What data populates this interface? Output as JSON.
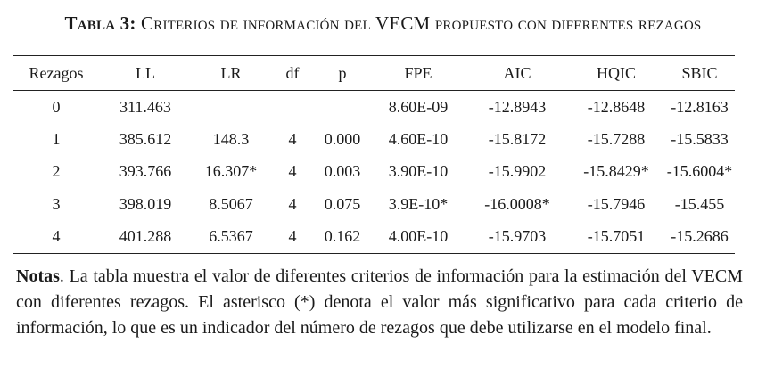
{
  "caption": {
    "label": "Tabla 3:",
    "title": "Criterios de información del VECM propuesto con diferentes rezagos"
  },
  "table": {
    "columns": [
      "Rezagos",
      "LL",
      "LR",
      "df",
      "p",
      "FPE",
      "AIC",
      "HQIC",
      "SBIC"
    ],
    "rows": [
      [
        "0",
        "311.463",
        "",
        "",
        "",
        "8.60E-09",
        "-12.8943",
        "-12.8648",
        "-12.8163"
      ],
      [
        "1",
        "385.612",
        "148.3",
        "4",
        "0.000",
        "4.60E-10",
        "-15.8172",
        "-15.7288",
        "-15.5833"
      ],
      [
        "2",
        "393.766",
        "16.307*",
        "4",
        "0.003",
        "3.90E-10",
        "-15.9902",
        "-15.8429*",
        "-15.6004*"
      ],
      [
        "3",
        "398.019",
        "8.5067",
        "4",
        "0.075",
        "3.9E-10*",
        "-16.0008*",
        "-15.7946",
        "-15.455"
      ],
      [
        "4",
        "401.288",
        "6.5367",
        "4",
        "0.162",
        "4.00E-10",
        "-15.9703",
        "-15.7051",
        "-15.2686"
      ]
    ]
  },
  "notes": {
    "lead": "Notas",
    "body": ". La tabla muestra el valor de diferentes criterios de información para la estimación del VECM con diferentes rezagos. El asterisco (*) denota el valor más significativo para cada criterio de información, lo que es un indicador del número de rezagos que debe utilizarse en el modelo final."
  }
}
